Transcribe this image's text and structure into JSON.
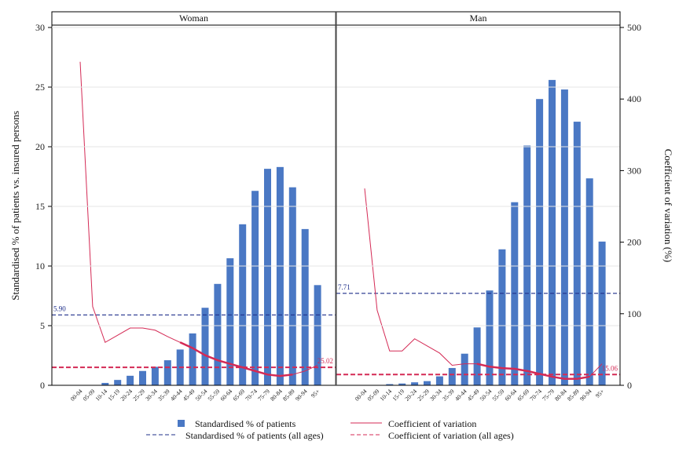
{
  "chart_data": {
    "type": "bar",
    "panels": [
      {
        "title": "Woman",
        "categories": [
          "00-04",
          "05-09",
          "10-14",
          "15-19",
          "20-24",
          "25-29",
          "30-34",
          "35-39",
          "40-44",
          "45-49",
          "50-54",
          "55-59",
          "60-64",
          "65-69",
          "70-74",
          "75-79",
          "80-84",
          "85-89",
          "90-94",
          "95+"
        ],
        "series": [
          {
            "name": "Standardised % of patients",
            "axis": "left",
            "values": [
              0.0,
              0.0,
              0.2,
              0.45,
              0.8,
              1.2,
              1.55,
              2.1,
              3.0,
              4.35,
              6.5,
              8.5,
              10.65,
              13.5,
              16.3,
              18.15,
              18.3,
              16.6,
              13.1,
              8.4
            ]
          },
          {
            "name": "Coefficient of variation",
            "axis": "right",
            "values": [
              452,
              110,
              60,
              70,
              80,
              80,
              77,
              68,
              60,
              52,
              42,
              35,
              30,
              25,
              20,
              15,
              13,
              15,
              20,
              28
            ]
          }
        ],
        "reference": {
          "standardised_all_ages": {
            "name": "Standardised % of patients (all ages)",
            "value": 5.9,
            "label": "5.90"
          },
          "cv_all_ages": {
            "name": "Coefficient of variation (all ages)",
            "value": 25.02,
            "label": "25.02"
          }
        }
      },
      {
        "title": "Man",
        "categories": [
          "00-04",
          "05-09",
          "10-14",
          "15-19",
          "20-24",
          "25-29",
          "30-34",
          "35-39",
          "40-44",
          "45-49",
          "50-54",
          "55-59",
          "60-64",
          "65-69",
          "70-74",
          "75-79",
          "80-84",
          "85-89",
          "90-94",
          "95+"
        ],
        "series": [
          {
            "name": "Standardised % of patients",
            "axis": "left",
            "values": [
              0.0,
              0.0,
              0.1,
              0.15,
              0.25,
              0.35,
              0.75,
              1.45,
              2.65,
              4.85,
              7.95,
              11.4,
              15.35,
              20.1,
              24.0,
              25.6,
              24.8,
              22.1,
              17.35,
              12.05
            ]
          },
          {
            "name": "Coefficient of variation",
            "axis": "right",
            "values": [
              275,
              105,
              48,
              48,
              65,
              55,
              45,
              28,
              30,
              30,
              26,
              24,
              23,
              20,
              16,
              12,
              9,
              9,
              12,
              30
            ]
          }
        ],
        "reference": {
          "standardised_all_ages": {
            "name": "Standardised % of patients (all ages)",
            "value": 7.71,
            "label": "7.71"
          },
          "cv_all_ages": {
            "name": "Coefficient of variation (all ages)",
            "value": 15.06,
            "label": "15.06"
          }
        }
      }
    ],
    "left_axis": {
      "label": "Standardised % of patients vs. insured persons",
      "ylim": [
        0,
        30
      ],
      "ticks": [
        "0",
        "5",
        "10",
        "15",
        "20",
        "25",
        "30"
      ]
    },
    "right_axis": {
      "label": "Coefficient of variation (%)",
      "ylim": [
        0,
        500
      ],
      "ticks": [
        "0",
        "100",
        "200",
        "300",
        "400",
        "500"
      ]
    },
    "legend": {
      "placement": "bottom",
      "items": [
        "Standardised % of patients",
        "Coefficient of variation",
        "Standardised % of patients (all ages)",
        "Coefficient of variation (all ages)"
      ]
    },
    "colors": {
      "bar": "#4a78c4",
      "cv_line": "#d42a55",
      "std_ref": "#1f2f8a",
      "cv_ref": "#d42a55"
    }
  }
}
